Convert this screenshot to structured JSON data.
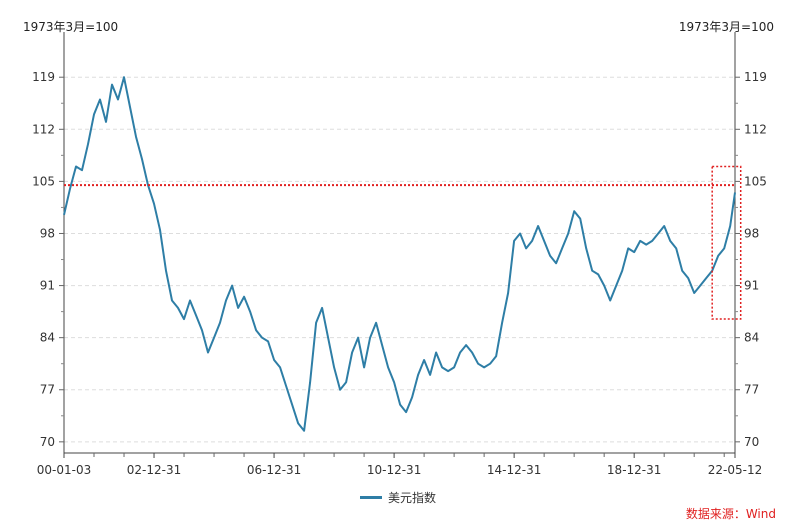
{
  "chart_data": {
    "type": "line",
    "left_unit": "1973年3月=100",
    "right_unit": "1973年3月=100",
    "x_tick_labels": [
      "00-01-03",
      "02-12-31",
      "06-12-31",
      "10-12-31",
      "14-12-31",
      "18-12-31",
      "22-05-12"
    ],
    "y_ticks": [
      70,
      77,
      84,
      91,
      98,
      105,
      112,
      119
    ],
    "ylim": [
      68.5,
      124
    ],
    "reference_line": 104.5,
    "highlight_box": {
      "x_range": [
        2021.6,
        2022.55
      ],
      "y_range": [
        86.5,
        107
      ]
    },
    "series": [
      {
        "name": "美元指数",
        "color": "#2e7ea6",
        "x": [
          2000.0,
          2000.2,
          2000.4,
          2000.6,
          2000.8,
          2001.0,
          2001.2,
          2001.4,
          2001.6,
          2001.8,
          2002.0,
          2002.2,
          2002.4,
          2002.6,
          2002.8,
          2003.0,
          2003.2,
          2003.4,
          2003.6,
          2003.8,
          2004.0,
          2004.2,
          2004.4,
          2004.6,
          2004.8,
          2005.0,
          2005.2,
          2005.4,
          2005.6,
          2005.8,
          2006.0,
          2006.2,
          2006.4,
          2006.6,
          2006.8,
          2007.0,
          2007.2,
          2007.4,
          2007.6,
          2007.8,
          2008.0,
          2008.2,
          2008.4,
          2008.6,
          2008.8,
          2009.0,
          2009.2,
          2009.4,
          2009.6,
          2009.8,
          2010.0,
          2010.2,
          2010.4,
          2010.6,
          2010.8,
          2011.0,
          2011.2,
          2011.4,
          2011.6,
          2011.8,
          2012.0,
          2012.2,
          2012.4,
          2012.6,
          2012.8,
          2013.0,
          2013.2,
          2013.4,
          2013.6,
          2013.8,
          2014.0,
          2014.2,
          2014.4,
          2014.6,
          2014.8,
          2015.0,
          2015.2,
          2015.4,
          2015.6,
          2015.8,
          2016.0,
          2016.2,
          2016.4,
          2016.6,
          2016.8,
          2017.0,
          2017.2,
          2017.4,
          2017.6,
          2017.8,
          2018.0,
          2018.2,
          2018.4,
          2018.6,
          2018.8,
          2019.0,
          2019.2,
          2019.4,
          2019.6,
          2019.8,
          2020.0,
          2020.2,
          2020.4,
          2020.6,
          2020.8,
          2021.0,
          2021.2,
          2021.4,
          2021.6,
          2021.8,
          2022.0,
          2022.2,
          2022.36
        ],
        "values": [
          100.5,
          104,
          107,
          106.5,
          110,
          114,
          116,
          113,
          118,
          116,
          119,
          115,
          111,
          108,
          104.5,
          102,
          98.5,
          93,
          89,
          88,
          86.5,
          89,
          87,
          85,
          82,
          84,
          86,
          89,
          91,
          88,
          89.5,
          87.5,
          85,
          84,
          83.5,
          81,
          80,
          77.5,
          75,
          72.5,
          71.5,
          78,
          86,
          88,
          84,
          80,
          77,
          78,
          82,
          84,
          80,
          84,
          86,
          83,
          80,
          78,
          75,
          74,
          76,
          79,
          81,
          79,
          82,
          80,
          79.5,
          80,
          82,
          83,
          82,
          80.5,
          80,
          80.5,
          81.5,
          86,
          90,
          97,
          98,
          96,
          97,
          99,
          97,
          95,
          94,
          96,
          98,
          101,
          100,
          96,
          93,
          92.5,
          91,
          89,
          91,
          93,
          96,
          95.5,
          97,
          96.5,
          97,
          98,
          99,
          97,
          96,
          93,
          92,
          90,
          91,
          92,
          93,
          95,
          96,
          99,
          103.5
        ]
      }
    ],
    "legend_position": "bottom-center",
    "grid": "horizontal dashed",
    "source": "数据来源：Wind"
  },
  "colors": {
    "line": "#2e7ea6",
    "reference": "#e02020",
    "source": "#e02020"
  }
}
